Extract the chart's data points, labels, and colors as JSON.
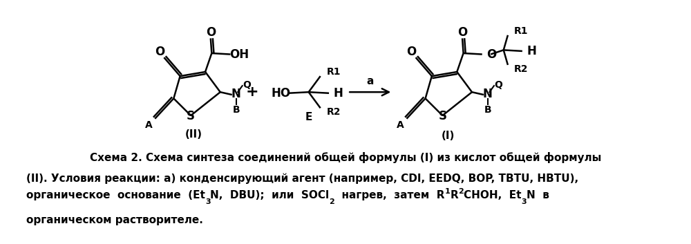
{
  "bg_color": "#ffffff",
  "fig_width": 10.0,
  "fig_height": 3.53,
  "dpi": 100,
  "lw": 1.8,
  "fontsize_main": 11,
  "fontsize_label": 10,
  "caption_line1": "Схема 2. Схема синтеза соединений общей формулы (I) из кислот общей формулы",
  "caption_line2": "(II). Условия реакции: а) конденсирующий агент (например, CDI, EEDQ, BOP, TBTU, HBTU),",
  "caption_line4": "органическом растворителе."
}
